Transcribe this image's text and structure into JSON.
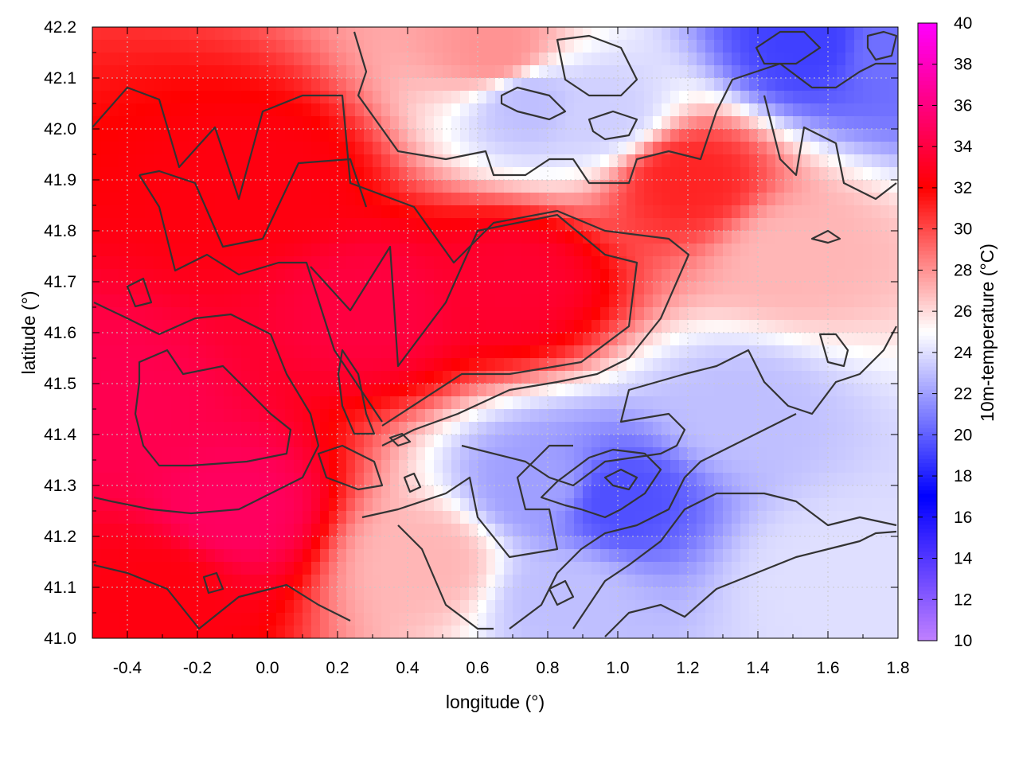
{
  "chart_data": {
    "type": "heatmap",
    "xlabel": "longitude (°)",
    "ylabel": "latitude (°)",
    "colorbar_label": "10m-temperature (°C)",
    "xlim": [
      -0.5,
      1.8
    ],
    "ylim": [
      41.0,
      42.2
    ],
    "x_ticks": [
      "-0.4",
      "-0.2",
      "0.0",
      "0.2",
      "0.4",
      "0.6",
      "0.8",
      "1.0",
      "1.2",
      "1.4",
      "1.6",
      "1.8"
    ],
    "x_tick_values": [
      -0.4,
      -0.2,
      0.0,
      0.2,
      0.4,
      0.6,
      0.8,
      1.0,
      1.2,
      1.4,
      1.6,
      1.8
    ],
    "y_ticks": [
      "41.0",
      "41.1",
      "41.2",
      "41.3",
      "41.4",
      "41.5",
      "41.6",
      "41.7",
      "41.8",
      "41.9",
      "42.0",
      "42.1",
      "42.2"
    ],
    "y_tick_values": [
      41.0,
      41.1,
      41.2,
      41.3,
      41.4,
      41.5,
      41.6,
      41.7,
      41.8,
      41.9,
      42.0,
      42.1,
      42.2
    ],
    "colorbar_range": [
      10,
      40
    ],
    "colorbar_ticks": [
      "10",
      "12",
      "14",
      "16",
      "18",
      "20",
      "22",
      "24",
      "26",
      "28",
      "30",
      "32",
      "34",
      "36",
      "38",
      "40"
    ],
    "colorbar_tick_values": [
      10,
      12,
      14,
      16,
      18,
      20,
      22,
      24,
      26,
      28,
      30,
      32,
      34,
      36,
      38,
      40
    ],
    "colormap": [
      {
        "value": 10,
        "color": "#c080ff"
      },
      {
        "value": 17,
        "color": "#0000ff"
      },
      {
        "value": 25,
        "color": "#ffffff"
      },
      {
        "value": 32,
        "color": "#ff0000"
      },
      {
        "value": 40,
        "color": "#ff00ff"
      }
    ],
    "grid": true,
    "contours": true,
    "contour_color": "#333333",
    "field_features": [
      {
        "lon": -0.1,
        "lat": 41.25,
        "temp": 35.0
      },
      {
        "lon": -0.45,
        "lat": 41.45,
        "temp": 34.5
      },
      {
        "lon": 0.3,
        "lat": 41.65,
        "temp": 34.0
      },
      {
        "lon": 0.7,
        "lat": 41.7,
        "temp": 33.5
      },
      {
        "lon": 0.0,
        "lat": 41.9,
        "temp": 32.5
      },
      {
        "lon": -0.3,
        "lat": 41.1,
        "temp": 32.5
      },
      {
        "lon": 1.0,
        "lat": 41.27,
        "temp": 19.5
      },
      {
        "lon": 0.78,
        "lat": 41.3,
        "temp": 22.0
      },
      {
        "lon": 1.35,
        "lat": 41.45,
        "temp": 23.0
      },
      {
        "lon": 0.85,
        "lat": 41.08,
        "temp": 23.0
      },
      {
        "lon": 1.55,
        "lat": 42.17,
        "temp": 19.0
      },
      {
        "lon": 1.78,
        "lat": 42.15,
        "temp": 20.5
      },
      {
        "lon": 0.75,
        "lat": 42.05,
        "temp": 23.0
      },
      {
        "lon": 0.95,
        "lat": 42.03,
        "temp": 23.5
      },
      {
        "lon": 1.6,
        "lat": 41.12,
        "temp": 24.0
      },
      {
        "lon": 1.75,
        "lat": 41.05,
        "temp": 24.0
      },
      {
        "lon": 0.45,
        "lat": 41.15,
        "temp": 27.0
      },
      {
        "lon": 1.5,
        "lat": 41.75,
        "temp": 27.0
      },
      {
        "lon": 0.65,
        "lat": 42.15,
        "temp": 28.0
      },
      {
        "lon": 1.2,
        "lat": 41.9,
        "temp": 31.0
      }
    ]
  }
}
